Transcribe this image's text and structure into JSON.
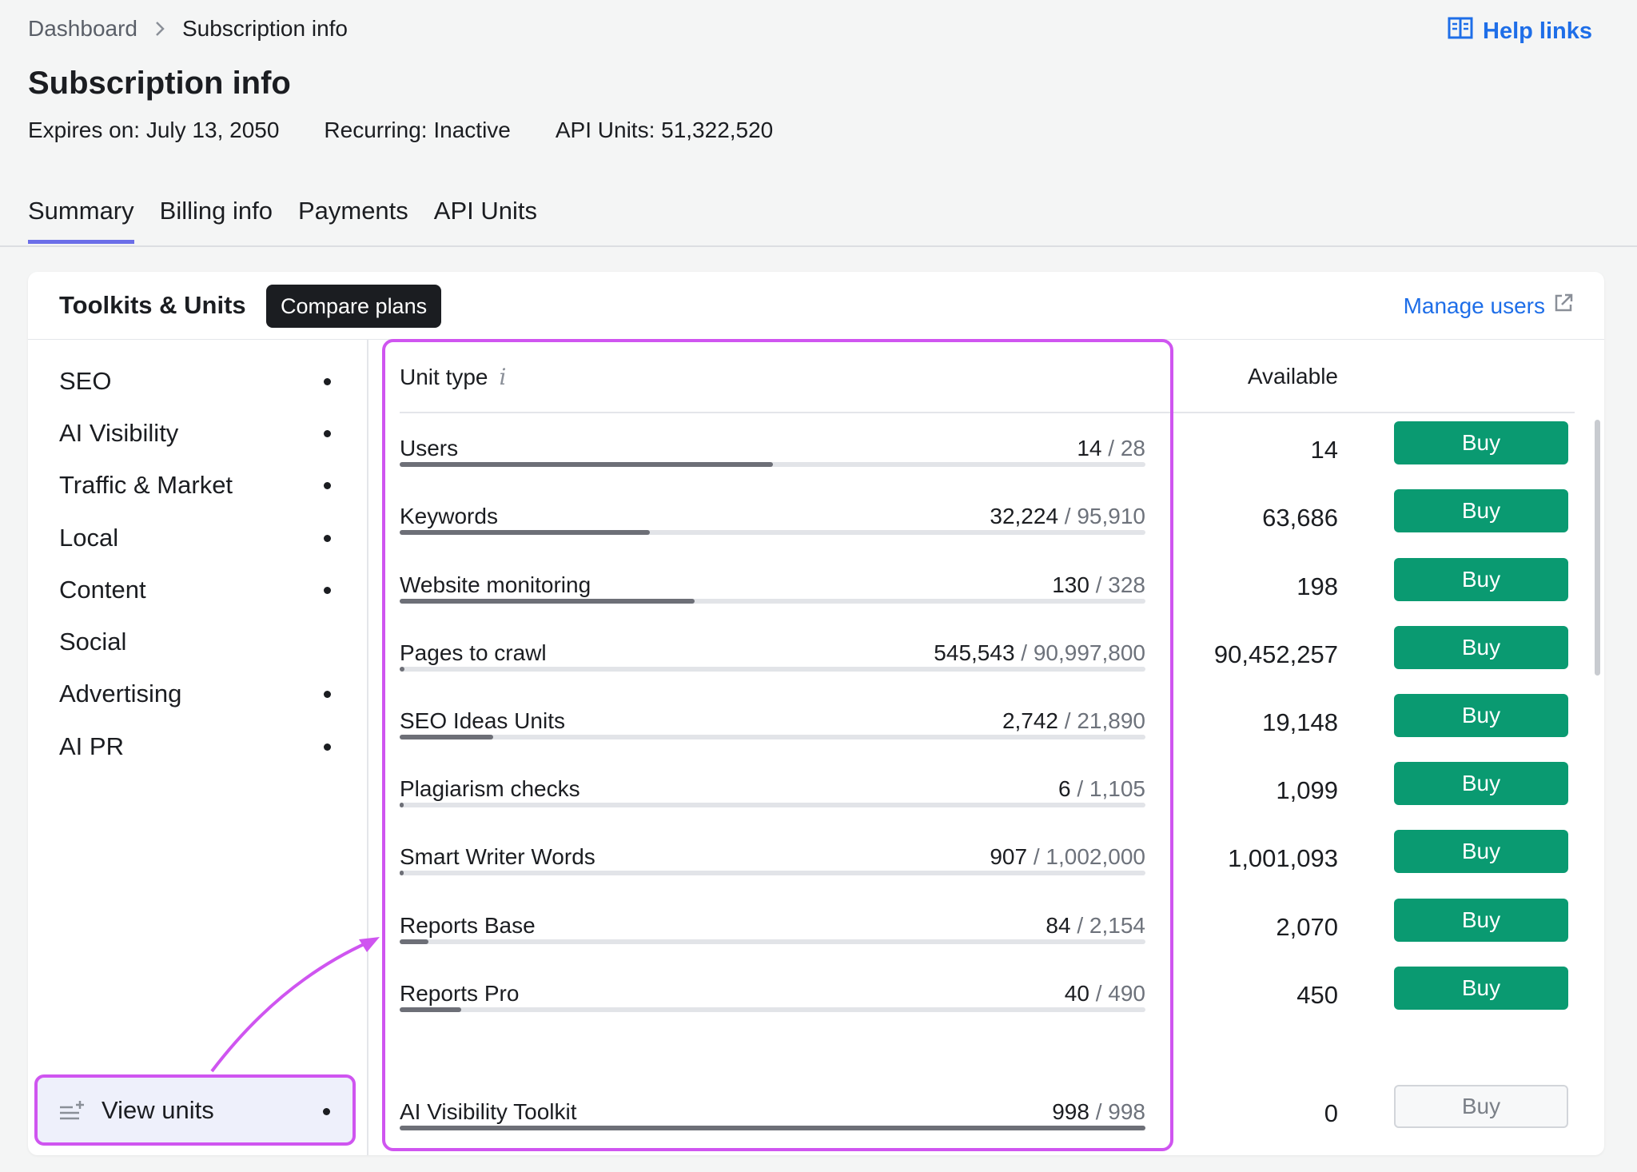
{
  "breadcrumb": {
    "parent": "Dashboard",
    "current": "Subscription info"
  },
  "help_links": "Help links",
  "title": "Subscription info",
  "meta": {
    "expires": "Expires on: July 13, 2050",
    "recurring": "Recurring: Inactive",
    "api_units": "API Units: 51,322,520"
  },
  "tabs": [
    "Summary",
    "Billing info",
    "Payments",
    "API Units"
  ],
  "card": {
    "title": "Toolkits & Units",
    "compare_label": "Compare plans",
    "manage_users": "Manage users"
  },
  "sidebar": {
    "items": [
      {
        "label": "SEO",
        "dot": true
      },
      {
        "label": "AI Visibility",
        "dot": true
      },
      {
        "label": "Traffic & Market",
        "dot": true
      },
      {
        "label": "Local",
        "dot": true
      },
      {
        "label": "Content",
        "dot": true
      },
      {
        "label": "Social",
        "dot": false
      },
      {
        "label": "Advertising",
        "dot": true
      },
      {
        "label": "AI PR",
        "dot": true
      }
    ],
    "view_units": "View units"
  },
  "table": {
    "unit_type_header": "Unit type",
    "info_glyph": "i",
    "available_header": "Available",
    "buy_label": "Buy",
    "rows": [
      {
        "label": "Users",
        "used": "14",
        "total": "28",
        "available": "14",
        "fraction": 0.5
      },
      {
        "label": "Keywords",
        "used": "32,224",
        "total": "95,910",
        "available": "63,686",
        "fraction": 0.336
      },
      {
        "label": "Website monitoring",
        "used": "130",
        "total": "328",
        "available": "198",
        "fraction": 0.396
      },
      {
        "label": "Pages to crawl",
        "used": "545,543",
        "total": "90,997,800",
        "available": "90,452,257",
        "fraction": 0.006
      },
      {
        "label": "SEO Ideas Units",
        "used": "2,742",
        "total": "21,890",
        "available": "19,148",
        "fraction": 0.125
      },
      {
        "label": "Plagiarism checks",
        "used": "6",
        "total": "1,105",
        "available": "1,099",
        "fraction": 0.005
      },
      {
        "label": "Smart Writer Words",
        "used": "907",
        "total": "1,002,000",
        "available": "1,001,093",
        "fraction": 0.001
      },
      {
        "label": "Reports Base",
        "used": "84",
        "total": "2,154",
        "available": "2,070",
        "fraction": 0.039
      },
      {
        "label": "Reports Pro",
        "used": "40",
        "total": "490",
        "available": "450",
        "fraction": 0.082
      },
      {
        "label": "AI Visibility Toolkit",
        "used": "998",
        "total": "998",
        "available": "0",
        "fraction": 1.0,
        "buy_disabled": true
      }
    ]
  },
  "colors": {
    "accent": "#1e6ee8",
    "buy": "#0a9a71",
    "highlight": "#cf55f0",
    "tab_underline": "#6b6ee8"
  }
}
